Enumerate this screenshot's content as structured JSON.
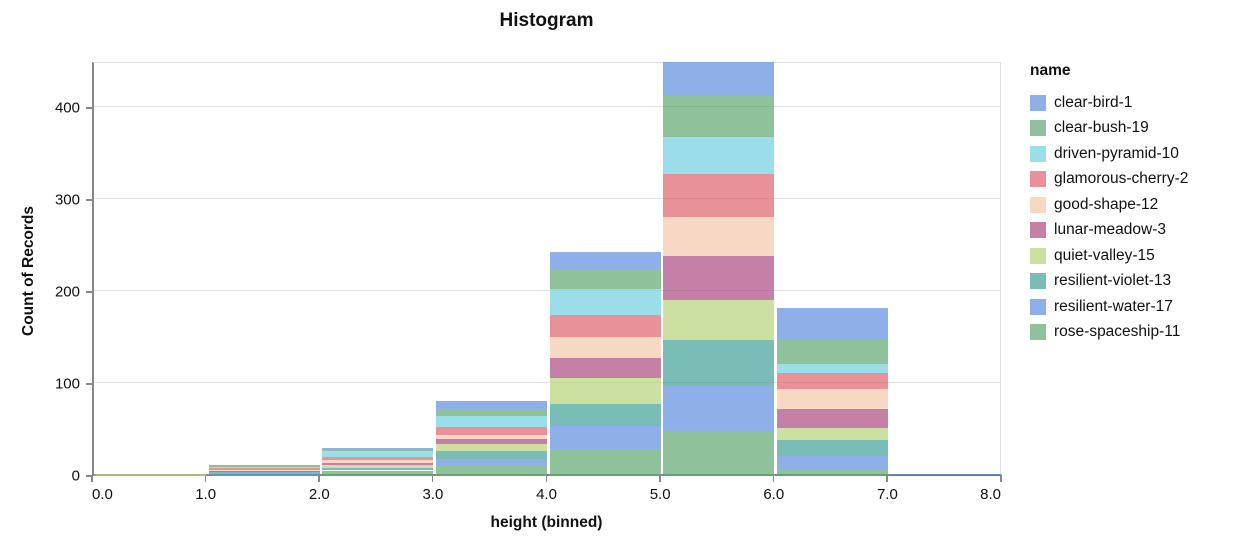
{
  "title": "Histogram",
  "axes": {
    "x": {
      "title": "height (binned)",
      "tick_labels": [
        "0.0",
        "1.0",
        "2.0",
        "3.0",
        "4.0",
        "5.0",
        "6.0",
        "7.0",
        "8.0"
      ]
    },
    "y": {
      "title": "Count of Records",
      "tick_labels": [
        "0",
        "100",
        "200",
        "300",
        "400"
      ],
      "tick_values": [
        0,
        100,
        200,
        300,
        400
      ]
    }
  },
  "legend": {
    "title": "name",
    "items": [
      {
        "label": "clear-bird-1",
        "color": "#5F8DDF"
      },
      {
        "label": "clear-bush-19",
        "color": "#5FA670"
      },
      {
        "label": "driven-pyramid-10",
        "color": "#71CEDF"
      },
      {
        "label": "glamorous-cherry-2",
        "color": "#DE636E"
      },
      {
        "label": "good-shape-12",
        "color": "#F2C8AB"
      },
      {
        "label": "lunar-meadow-3",
        "color": "#AB4A80"
      },
      {
        "label": "quiet-valley-15",
        "color": "#B6D479"
      },
      {
        "label": "resilient-violet-13",
        "color": "#42A197"
      },
      {
        "label": "resilient-water-17",
        "color": "#5F8DDF"
      },
      {
        "label": "rose-spaceship-11",
        "color": "#5FA670"
      }
    ]
  },
  "chart_data": {
    "type": "bar",
    "subtype": "stacked-histogram",
    "title": "Histogram",
    "xlabel": "height (binned)",
    "ylabel": "Count of Records",
    "bin_edges": [
      0,
      1,
      2,
      3,
      4,
      5,
      6,
      7,
      8
    ],
    "xlim": [
      0,
      8
    ],
    "ylim": [
      0,
      450
    ],
    "fill_opacity": 0.7,
    "grid": true,
    "legend_position": "right",
    "stack_order": "legend order top-to-bottom (first item on top of stack)",
    "series": [
      {
        "name": "clear-bird-1",
        "color": "#5F8DDF",
        "values": [
          0,
          1,
          2,
          8,
          19,
          37,
          35,
          1
        ]
      },
      {
        "name": "clear-bush-19",
        "color": "#5FA670",
        "values": [
          0,
          1,
          1,
          8,
          21,
          44,
          26,
          0
        ]
      },
      {
        "name": "driven-pyramid-10",
        "color": "#71CEDF",
        "values": [
          0,
          1,
          6,
          12,
          28,
          41,
          10,
          0
        ]
      },
      {
        "name": "glamorous-cherry-2",
        "color": "#DE636E",
        "values": [
          0,
          2,
          4,
          8,
          24,
          46,
          17,
          0
        ]
      },
      {
        "name": "good-shape-12",
        "color": "#F2C8AB",
        "values": [
          0,
          1,
          3,
          5,
          23,
          43,
          22,
          0
        ]
      },
      {
        "name": "lunar-meadow-3",
        "color": "#AB4A80",
        "values": [
          0,
          1,
          2,
          5,
          21,
          48,
          21,
          1
        ]
      },
      {
        "name": "quiet-valley-15",
        "color": "#B6D479",
        "values": [
          2,
          1,
          3,
          8,
          29,
          43,
          13,
          0
        ]
      },
      {
        "name": "resilient-violet-13",
        "color": "#42A197",
        "values": [
          0,
          2,
          3,
          9,
          24,
          50,
          17,
          0
        ]
      },
      {
        "name": "resilient-water-17",
        "color": "#5F8DDF",
        "values": [
          0,
          1,
          2,
          6,
          25,
          49,
          15,
          0
        ]
      },
      {
        "name": "rose-spaceship-11",
        "color": "#5FA670",
        "values": [
          0,
          1,
          4,
          12,
          29,
          49,
          7,
          0
        ]
      }
    ],
    "bin_totals": [
      2,
      12,
      30,
      81,
      243,
      450,
      183,
      2
    ]
  },
  "style": {
    "grid_color": "#e2e2e2",
    "axis_color": "#888888",
    "text_color": "#111111",
    "background": "#ffffff"
  }
}
